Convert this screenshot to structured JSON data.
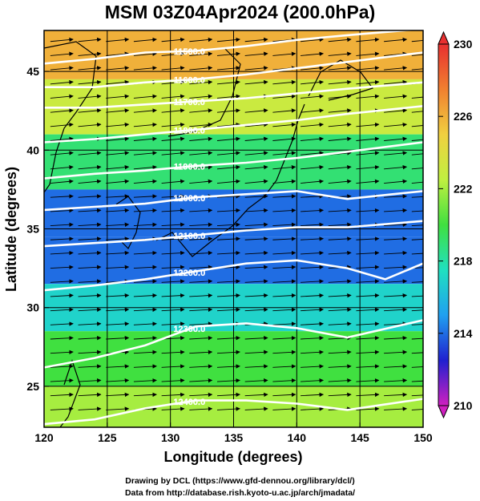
{
  "title": "MSM 03Z04Apr2024 (200.0hPa)",
  "credits": {
    "line1": "Drawing by DCL (https://www.gfd-dennou.org/library/dcl/)",
    "line2": "Data from http://database.rish.kyoto-u.ac.jp/arch/jmadata/"
  },
  "chart_data": {
    "type": "heatmap",
    "title": "MSM 03Z04Apr2024 (200.0hPa)",
    "xlabel": "Longitude (degrees)",
    "ylabel": "Latitude  (degrees)",
    "xlim": [
      120,
      150
    ],
    "ylim": [
      22.4,
      47.6
    ],
    "xticks": [
      120,
      125,
      130,
      135,
      140,
      145,
      150
    ],
    "yticks": [
      25,
      30,
      35,
      40,
      45
    ],
    "grid": true,
    "colorbar": {
      "min": 210,
      "max": 230,
      "ticks": [
        210,
        214,
        218,
        222,
        226,
        230
      ],
      "colors": [
        "#d020c0",
        "#2020d0",
        "#20a0f0",
        "#20e0c0",
        "#40e040",
        "#c0f040",
        "#f0d040",
        "#f08030",
        "#e83030"
      ]
    },
    "temperature_bands": [
      {
        "lat": 46,
        "value": 226
      },
      {
        "lat": 43,
        "value": 223
      },
      {
        "lat": 39,
        "value": 219
      },
      {
        "lat": 36,
        "value": 214
      },
      {
        "lat": 33,
        "value": 214
      },
      {
        "lat": 30,
        "value": 217
      },
      {
        "lat": 27,
        "value": 220
      },
      {
        "lat": 23,
        "value": 222
      }
    ],
    "contours": [
      {
        "label": "11500.0",
        "lon": [
          120,
          124,
          128,
          132,
          136,
          140,
          144,
          150
        ],
        "lat": [
          45.5,
          45.8,
          46.2,
          46.3,
          46.6,
          47.0,
          47.3,
          47.7
        ]
      },
      {
        "label": "11600.0",
        "lon": [
          120,
          124,
          128,
          132,
          136,
          140,
          144,
          150
        ],
        "lat": [
          44.0,
          44.0,
          44.3,
          44.5,
          44.8,
          45.2,
          45.6,
          46.2
        ]
      },
      {
        "label": "11700.0",
        "lon": [
          120,
          124,
          128,
          132,
          136,
          140,
          144,
          150
        ],
        "lat": [
          42.7,
          42.7,
          42.9,
          43.1,
          43.3,
          43.6,
          43.9,
          44.3
        ]
      },
      {
        "label": "11800.0",
        "lon": [
          120,
          124,
          128,
          132,
          136,
          140,
          144,
          150
        ],
        "lat": [
          40.5,
          40.7,
          41.0,
          41.3,
          41.6,
          41.9,
          42.3,
          42.8
        ]
      },
      {
        "label": "11900.0",
        "lon": [
          120,
          124,
          128,
          132,
          136,
          140,
          144,
          150
        ],
        "lat": [
          38.2,
          38.5,
          38.7,
          39.0,
          39.2,
          39.5,
          39.9,
          40.5
        ]
      },
      {
        "label": "12000.0",
        "lon": [
          120,
          124,
          128,
          132,
          136,
          140,
          144,
          150
        ],
        "lat": [
          36.2,
          36.4,
          36.6,
          37.0,
          37.2,
          37.4,
          36.9,
          37.4
        ]
      },
      {
        "label": "12100.0",
        "lon": [
          120,
          124,
          128,
          132,
          136,
          140,
          144,
          150
        ],
        "lat": [
          33.9,
          34.1,
          34.3,
          34.6,
          34.9,
          35.1,
          35.1,
          35.5
        ]
      },
      {
        "label": "12200.0",
        "lon": [
          120,
          124,
          128,
          132,
          136,
          140,
          144,
          147,
          150
        ],
        "lat": [
          31.1,
          31.4,
          31.8,
          32.3,
          32.8,
          33.0,
          32.5,
          31.8,
          32.8
        ]
      },
      {
        "label": "12300.0",
        "lon": [
          120,
          124,
          128,
          132,
          136,
          140,
          144,
          150
        ],
        "lat": [
          26.2,
          26.8,
          27.6,
          28.8,
          29.0,
          28.7,
          28.1,
          29.2
        ]
      },
      {
        "label": "12400.0",
        "lon": [
          120,
          124,
          128,
          132,
          136,
          140,
          144,
          150
        ],
        "lat": [
          22.6,
          22.9,
          23.6,
          24.1,
          24.1,
          23.9,
          23.5,
          24.2
        ]
      }
    ]
  }
}
